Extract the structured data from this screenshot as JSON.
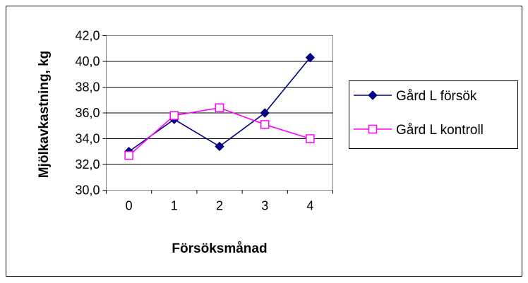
{
  "chart_data": {
    "type": "line",
    "xlabel": "Försöksmånad",
    "ylabel": "Mjölkavkastning, kg",
    "categories": [
      "0",
      "1",
      "2",
      "3",
      "4"
    ],
    "ylim": [
      30,
      42
    ],
    "yticks": [
      "30,0",
      "32,0",
      "34,0",
      "36,0",
      "38,0",
      "40,0",
      "42,0"
    ],
    "grid": true,
    "legend_position": "right",
    "series": [
      {
        "name": "Gård L försök",
        "values": [
          33.0,
          35.5,
          33.4,
          36.0,
          40.3
        ],
        "color": "#000080",
        "marker": "filled-diamond"
      },
      {
        "name": "Gård L kontroll",
        "values": [
          32.7,
          35.8,
          36.4,
          35.1,
          34.0
        ],
        "color": "#ff00ff",
        "marker": "hollow-square"
      }
    ]
  }
}
